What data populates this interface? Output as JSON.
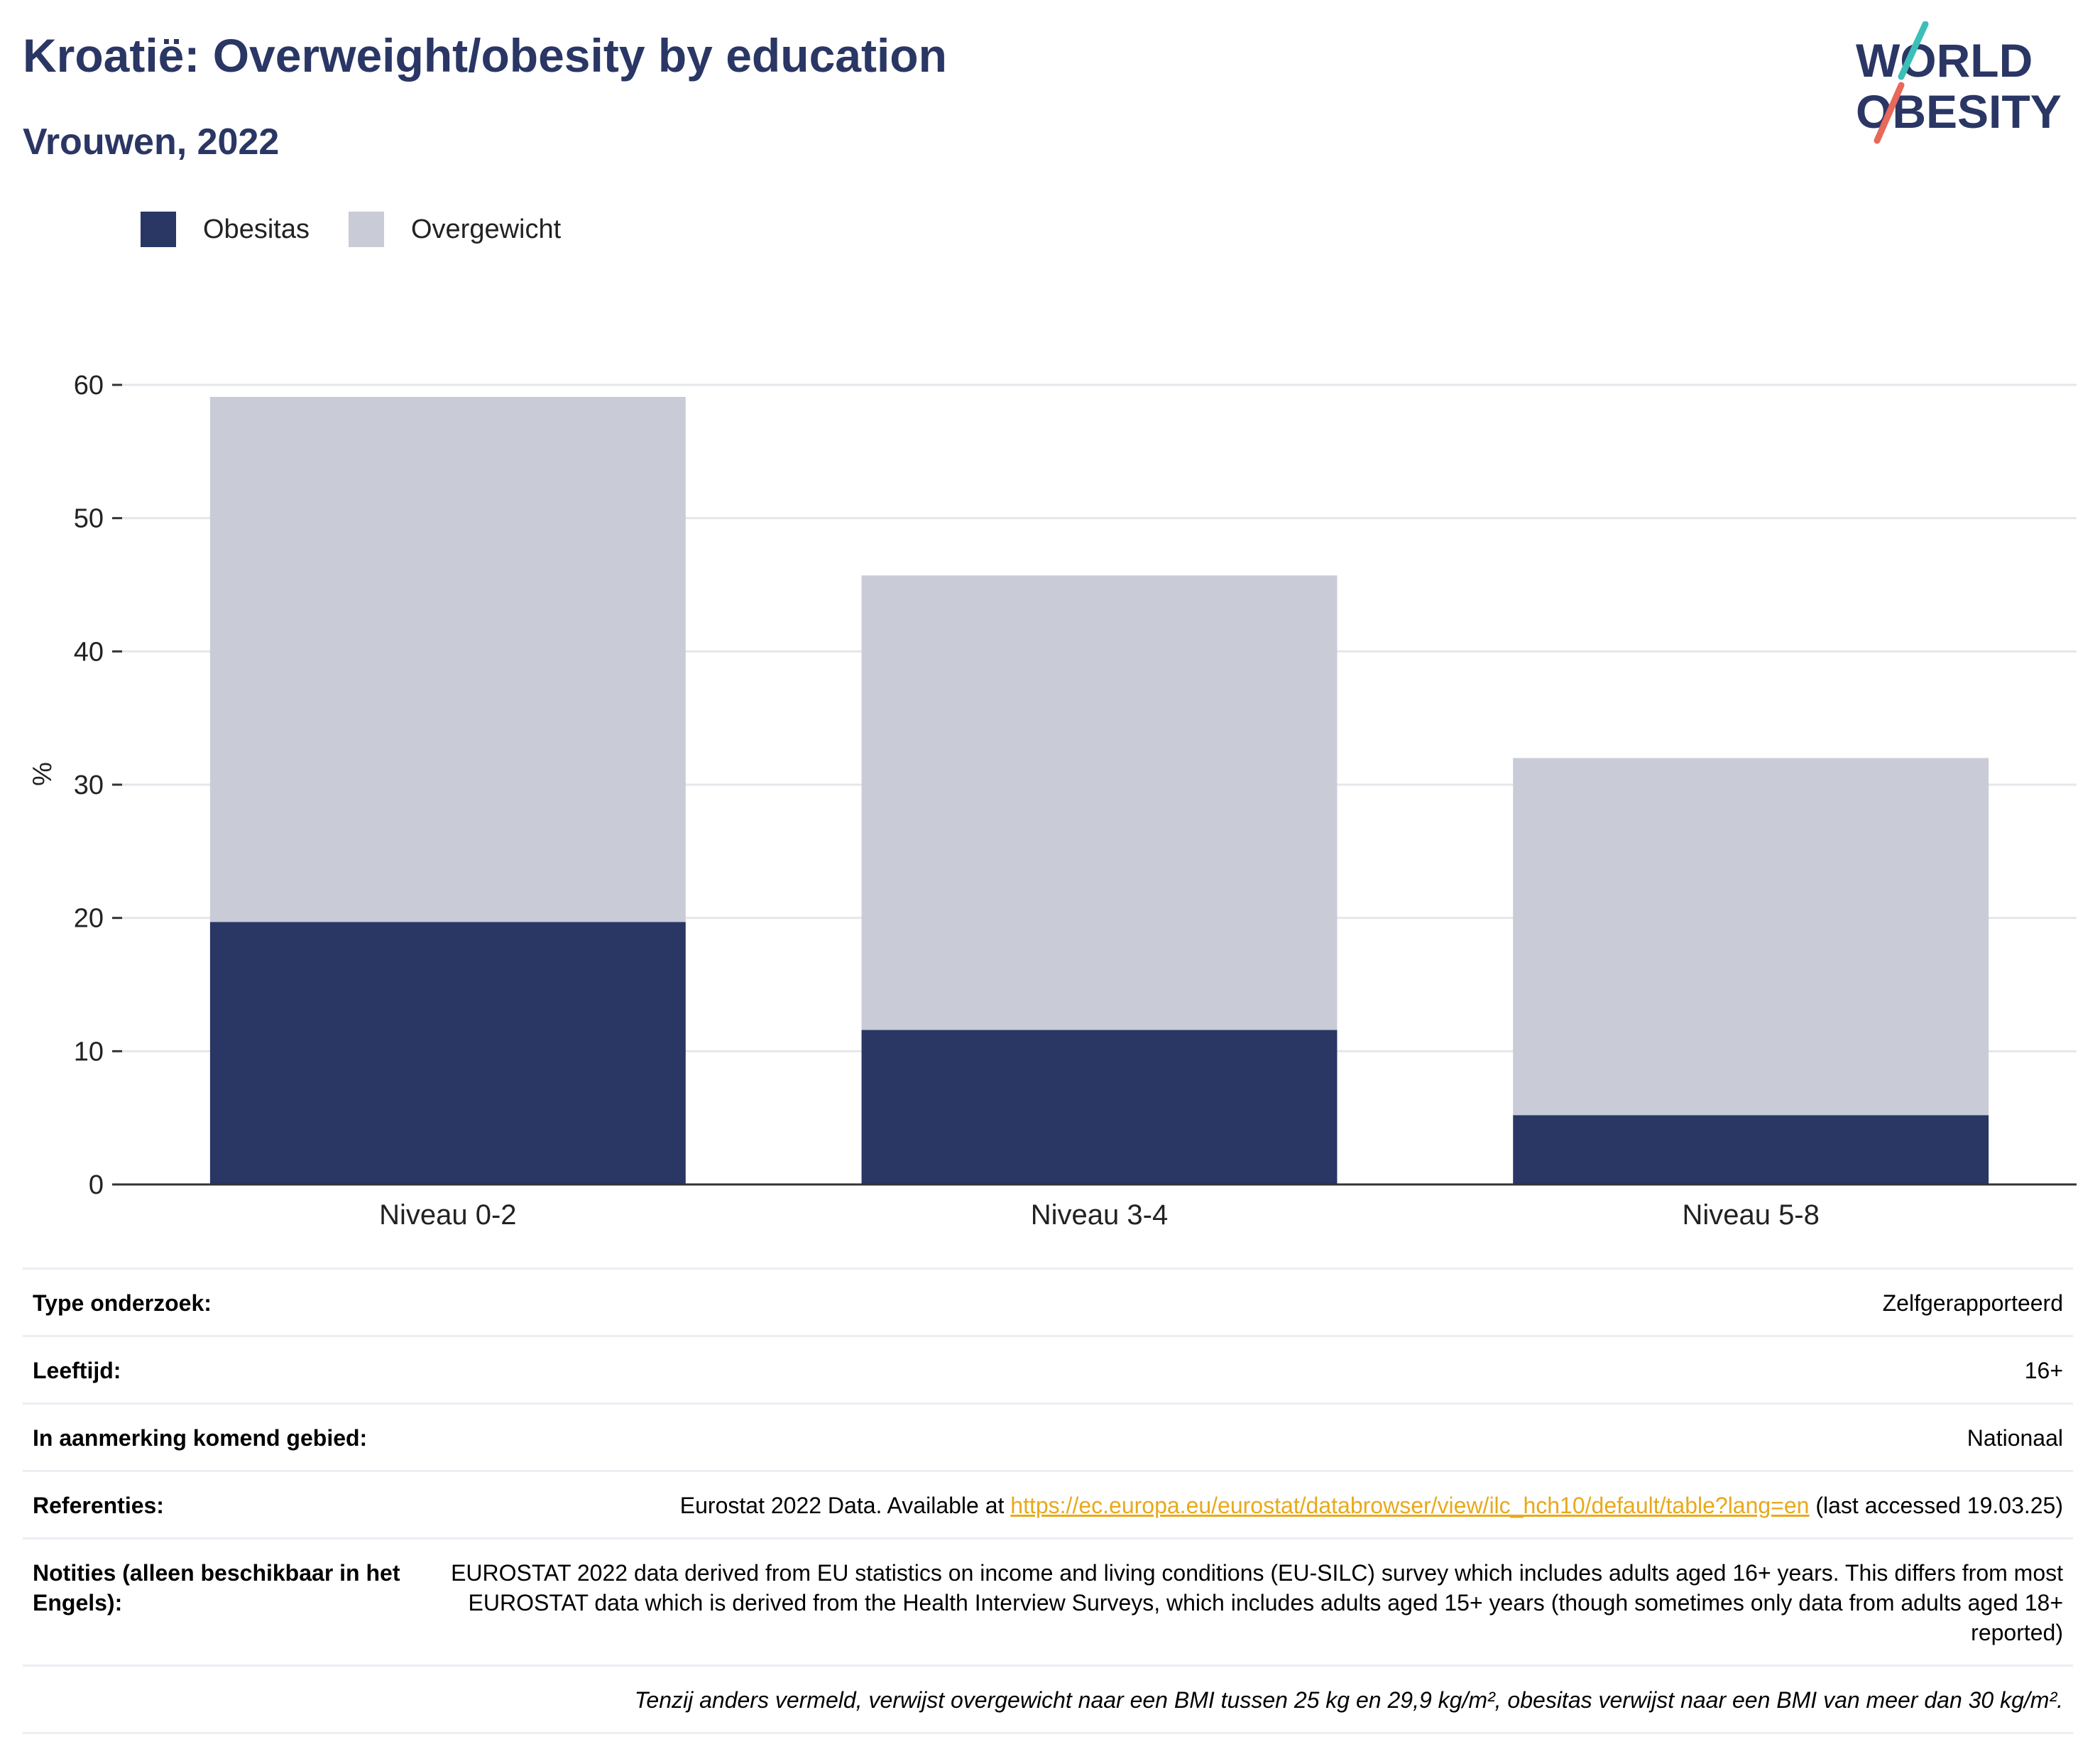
{
  "header": {
    "title": "Kroatië: Overweight/obesity by education",
    "subtitle": "Vrouwen, 2022",
    "logo_line1": "WORLD",
    "logo_line2": "OBESITY"
  },
  "colors": {
    "obesitas": "#2a3664",
    "overgewicht": "#c9ccd7",
    "title": "#2a3664",
    "link": "#e8a91b",
    "logo_teal": "#3bbfb8",
    "logo_red": "#e8685a"
  },
  "chart_data": {
    "type": "bar",
    "stacked": true,
    "categories": [
      "Niveau 0-2",
      "Niveau 3-4",
      "Niveau 5-8"
    ],
    "series": [
      {
        "name": "Obesitas",
        "values": [
          19.7,
          11.6,
          5.2
        ]
      },
      {
        "name": "Overgewicht",
        "values": [
          39.4,
          34.1,
          26.8
        ]
      }
    ],
    "ylabel": "%",
    "ylim": [
      0,
      60
    ],
    "yticks": [
      0,
      10,
      20,
      30,
      40,
      50,
      60
    ],
    "grid": true,
    "legend_position": "top-left"
  },
  "info": {
    "rows": [
      {
        "label": "Type onderzoek:",
        "value": "Zelfgerapporteerd"
      },
      {
        "label": "Leeftijd:",
        "value": "16+"
      },
      {
        "label": "In aanmerking komend gebied:",
        "value": "Nationaal"
      }
    ],
    "references": {
      "label": "Referenties:",
      "before": "Eurostat 2022 Data. Available at ",
      "link": "https://ec.europa.eu/eurostat/databrowser/view/ilc_hch10/default/table?lang=en",
      "after": " (last accessed 19.03.25)"
    },
    "notes": {
      "label": "Notities (alleen beschikbaar in het Engels):",
      "value": "EUROSTAT 2022 data derived from EU statistics on income and living conditions (EU-SILC) survey which includes adults aged 16+ years. This differs from most EUROSTAT data which is derived from the Health Interview Surveys, which includes adults aged 15+ years (though sometimes only data from adults aged 18+ reported)"
    },
    "footnote": "Tenzij anders vermeld, verwijst overgewicht naar een BMI tussen 25 kg en 29,9 kg/m², obesitas verwijst naar een BMI van meer dan 30 kg/m²."
  }
}
